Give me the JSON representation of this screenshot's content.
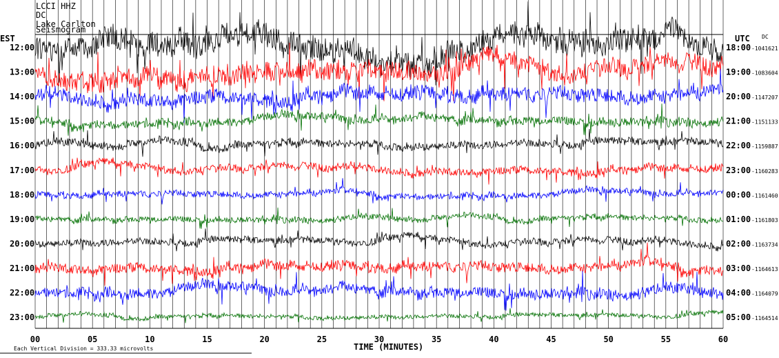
{
  "chart_data": {
    "type": "line",
    "header": [
      "LCCI HHZ",
      "DC",
      "Lake Carlton",
      "Seismogram"
    ],
    "left_timezone": "EST",
    "right_timezone": "UTC",
    "dc_label": "DC",
    "xlabel": "TIME (MINUTES)",
    "xlim": [
      0,
      60
    ],
    "x_ticks": [
      "00",
      "05",
      "10",
      "15",
      "20",
      "25",
      "30",
      "35",
      "40",
      "45",
      "50",
      "55",
      "60"
    ],
    "scale_note": "Each Vertical Division =  333.33 microvolts",
    "rows": [
      {
        "est": "12:00",
        "utc": "18:00",
        "dc": "1041621"
      },
      {
        "est": "13:00",
        "utc": "19:00",
        "dc": "1083604"
      },
      {
        "est": "14:00",
        "utc": "20:00",
        "dc": "1147207"
      },
      {
        "est": "15:00",
        "utc": "21:00",
        "dc": "1151133"
      },
      {
        "est": "16:00",
        "utc": "22:00",
        "dc": "1159887"
      },
      {
        "est": "17:00",
        "utc": "23:00",
        "dc": "1160283"
      },
      {
        "est": "18:00",
        "utc": "00:00",
        "dc": "1161460"
      },
      {
        "est": "19:00",
        "utc": "01:00",
        "dc": "1161803"
      },
      {
        "est": "20:00",
        "utc": "02:00",
        "dc": "1163734"
      },
      {
        "est": "21:00",
        "utc": "03:00",
        "dc": "1164613"
      },
      {
        "est": "22:00",
        "utc": "04:00",
        "dc": "1164079"
      },
      {
        "est": "23:00",
        "utc": "05:00",
        "dc": "1164514"
      }
    ],
    "trace_colors": [
      "#000000",
      "#ff0000",
      "#0000ff",
      "#007000"
    ],
    "grid": true
  }
}
